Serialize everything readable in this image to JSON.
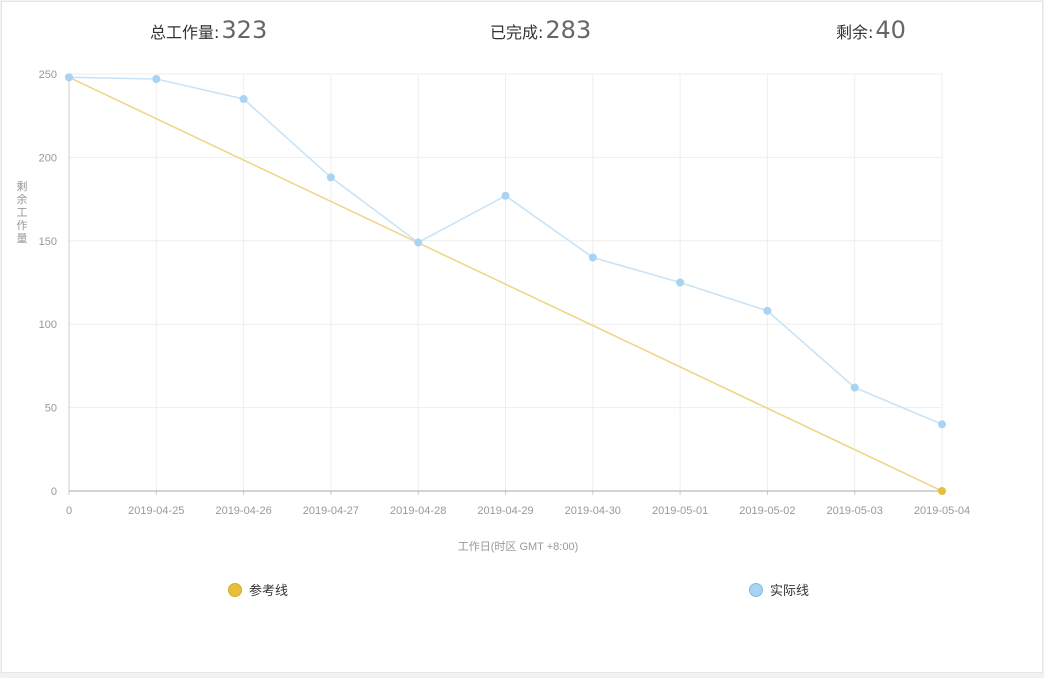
{
  "summary": {
    "total_label": "总工作量:",
    "total_value": "323",
    "done_label": "已完成:",
    "done_value": "283",
    "remaining_label": "剩余:",
    "remaining_value": "40"
  },
  "colors": {
    "reference_line": "#f0d68a",
    "reference_point": "#e8bf3a",
    "actual_line": "#c9e4f7",
    "actual_point": "#a9d3f2",
    "grid": "#eeeeee",
    "axis": "#cccccc",
    "tick_text": "#999999"
  },
  "chart_data": {
    "type": "line",
    "xlabel": "工作日(时区 GMT +8:00)",
    "ylabel": "剩余工作量",
    "categories": [
      "0",
      "2019-04-25",
      "2019-04-26",
      "2019-04-27",
      "2019-04-28",
      "2019-04-29",
      "2019-04-30",
      "2019-05-01",
      "2019-05-02",
      "2019-05-03",
      "2019-05-04"
    ],
    "ylim": [
      0,
      250
    ],
    "yticks": [
      0,
      50,
      100,
      150,
      200,
      250
    ],
    "grid": true,
    "legend_position": "bottom",
    "series": [
      {
        "name": "参考线",
        "values": [
          248,
          223.2,
          198.4,
          173.6,
          148.8,
          124,
          99.2,
          74.4,
          49.6,
          24.8,
          0
        ]
      },
      {
        "name": "实际线",
        "values": [
          248,
          247,
          235,
          188,
          149,
          177,
          140,
          125,
          108,
          62,
          40
        ]
      }
    ]
  }
}
